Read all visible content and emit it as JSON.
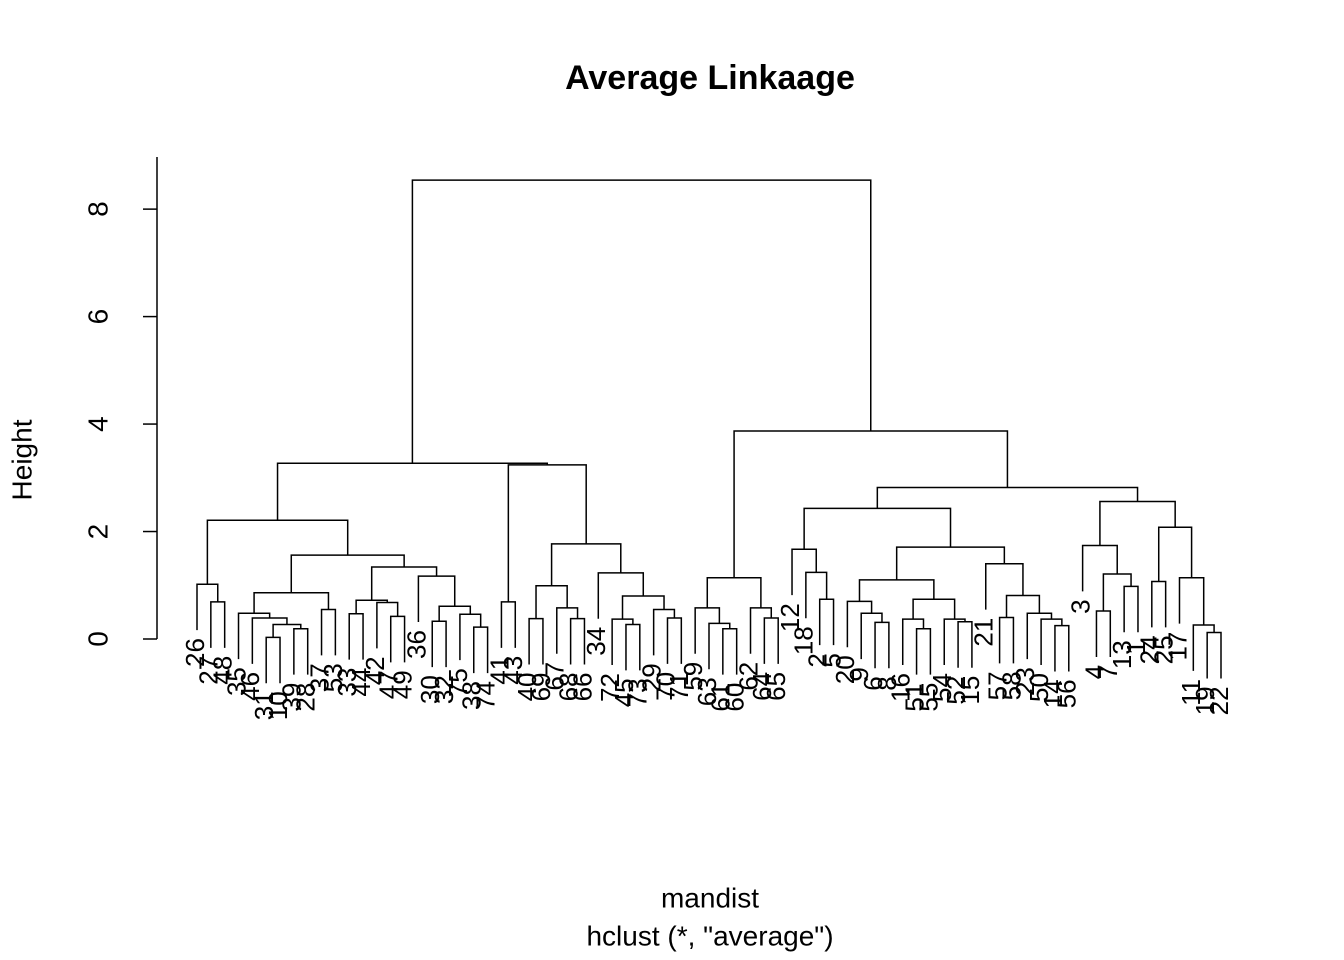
{
  "chart_data": {
    "type": "dendrogram",
    "title": "Average Linkaage",
    "xlabel": "mandist",
    "subtitle": "hclust (*, \"average\")",
    "ylabel": "Height",
    "ylim": [
      0,
      8.97
    ],
    "yticks": [
      0,
      2,
      4,
      6,
      8
    ],
    "color": "#000000",
    "tree": {
      "height": 8.54,
      "children": [
        {
          "height": 3.27,
          "children": [
            {
              "height": 2.21,
              "children": [
                {
                  "height": 1.02,
                  "children": [
                    "26",
                    {
                      "height": 0.69,
                      "children": [
                        "27",
                        "48"
                      ]
                    }
                  ]
                },
                {
                  "height": 1.56,
                  "children": [
                    {
                      "height": 0.86,
                      "children": [
                        {
                          "height": 0.48,
                          "children": [
                            "35",
                            {
                              "height": 0.39,
                              "children": [
                                "46",
                                {
                                  "height": 0.27,
                                  "children": [
                                    {
                                      "height": 0.03,
                                      "children": [
                                        "31",
                                        "10"
                                      ]
                                    },
                                    {
                                      "height": 0.19,
                                      "children": [
                                        "39",
                                        "28"
                                      ]
                                    }
                                  ]
                                }
                              ]
                            }
                          ]
                        },
                        {
                          "height": 0.55,
                          "children": [
                            "37",
                            "53"
                          ]
                        }
                      ]
                    },
                    {
                      "height": 1.34,
                      "children": [
                        {
                          "height": 0.72,
                          "children": [
                            {
                              "height": 0.47,
                              "children": [
                                "33",
                                "44"
                              ]
                            },
                            {
                              "height": 0.68,
                              "children": [
                                "42",
                                {
                                  "height": 0.42,
                                  "children": [
                                    "47",
                                    "49"
                                  ]
                                }
                              ]
                            }
                          ]
                        },
                        {
                          "height": 1.17,
                          "children": [
                            "36",
                            {
                              "height": 0.61,
                              "children": [
                                {
                                  "height": 0.33,
                                  "children": [
                                    "30",
                                    "32"
                                  ]
                                },
                                {
                                  "height": 0.46,
                                  "children": [
                                    "75",
                                    {
                                      "height": 0.22,
                                      "children": [
                                        "38",
                                        "74"
                                      ]
                                    }
                                  ]
                                }
                              ]
                            }
                          ]
                        }
                      ]
                    }
                  ]
                }
              ]
            },
            {
              "height": 3.24,
              "children": [
                {
                  "height": 0.69,
                  "children": [
                    "41",
                    "43"
                  ]
                },
                {
                  "height": 1.77,
                  "children": [
                    {
                      "height": 0.99,
                      "children": [
                        {
                          "height": 0.38,
                          "children": [
                            "40",
                            "69"
                          ]
                        },
                        {
                          "height": 0.58,
                          "children": [
                            "67",
                            {
                              "height": 0.38,
                              "children": [
                                "68",
                                "66"
                              ]
                            }
                          ]
                        }
                      ]
                    },
                    {
                      "height": 1.23,
                      "children": [
                        "34",
                        {
                          "height": 0.8,
                          "children": [
                            {
                              "height": 0.37,
                              "children": [
                                "72",
                                {
                                  "height": 0.27,
                                  "children": [
                                    "45",
                                    "73"
                                  ]
                                }
                              ]
                            },
                            {
                              "height": 0.55,
                              "children": [
                                "29",
                                {
                                  "height": 0.39,
                                  "children": [
                                    "70",
                                    "71"
                                  ]
                                }
                              ]
                            }
                          ]
                        }
                      ]
                    }
                  ]
                }
              ]
            }
          ]
        },
        {
          "height": 3.87,
          "children": [
            {
              "height": 1.14,
              "children": [
                {
                  "height": 0.58,
                  "children": [
                    "59",
                    {
                      "height": 0.29,
                      "children": [
                        "63",
                        {
                          "height": 0.19,
                          "children": [
                            "61",
                            "60"
                          ]
                        }
                      ]
                    }
                  ]
                },
                {
                  "height": 0.58,
                  "children": [
                    "62",
                    {
                      "height": 0.39,
                      "children": [
                        "64",
                        "65"
                      ]
                    }
                  ]
                }
              ]
            },
            {
              "height": 2.82,
              "children": [
                {
                  "height": 2.43,
                  "children": [
                    {
                      "height": 1.67,
                      "children": [
                        "12",
                        {
                          "height": 1.24,
                          "children": [
                            "18",
                            {
                              "height": 0.74,
                              "children": [
                                "2",
                                "5"
                              ]
                            }
                          ]
                        }
                      ]
                    },
                    {
                      "height": 1.71,
                      "children": [
                        {
                          "height": 1.1,
                          "children": [
                            {
                              "height": 0.7,
                              "children": [
                                "20",
                                {
                                  "height": 0.48,
                                  "children": [
                                    "9",
                                    {
                                      "height": 0.31,
                                      "children": [
                                        "6",
                                        "8"
                                      ]
                                    }
                                  ]
                                }
                              ]
                            },
                            {
                              "height": 0.74,
                              "children": [
                                {
                                  "height": 0.37,
                                  "children": [
                                    "16",
                                    {
                                      "height": 0.19,
                                      "children": [
                                        "51",
                                        "55"
                                      ]
                                    }
                                  ]
                                },
                                {
                                  "height": 0.37,
                                  "children": [
                                    "54",
                                    {
                                      "height": 0.32,
                                      "children": [
                                        "52",
                                        "15"
                                      ]
                                    }
                                  ]
                                }
                              ]
                            }
                          ]
                        },
                        {
                          "height": 1.4,
                          "children": [
                            "21",
                            {
                              "height": 0.81,
                              "children": [
                                {
                                  "height": 0.4,
                                  "children": [
                                    "57",
                                    "58"
                                  ]
                                },
                                {
                                  "height": 0.48,
                                  "children": [
                                    "23",
                                    {
                                      "height": 0.37,
                                      "children": [
                                        "50",
                                        {
                                          "height": 0.25,
                                          "children": [
                                            "14",
                                            "56"
                                          ]
                                        }
                                      ]
                                    }
                                  ]
                                }
                              ]
                            }
                          ]
                        }
                      ]
                    }
                  ]
                },
                {
                  "height": 2.56,
                  "children": [
                    {
                      "height": 1.74,
                      "children": [
                        "3",
                        {
                          "height": 1.21,
                          "children": [
                            {
                              "height": 0.52,
                              "children": [
                                "4",
                                "7"
                              ]
                            },
                            {
                              "height": 0.98,
                              "children": [
                                "13",
                                "1"
                              ]
                            }
                          ]
                        }
                      ]
                    },
                    {
                      "height": 2.08,
                      "children": [
                        {
                          "height": 1.07,
                          "children": [
                            "24",
                            "25"
                          ]
                        },
                        {
                          "height": 1.14,
                          "children": [
                            "17",
                            {
                              "height": 0.26,
                              "children": [
                                "11",
                                {
                                  "height": 0.12,
                                  "children": [
                                    "19",
                                    "22"
                                  ]
                                }
                              ]
                            }
                          ]
                        }
                      ]
                    }
                  ]
                }
              ]
            }
          ]
        }
      ]
    }
  }
}
